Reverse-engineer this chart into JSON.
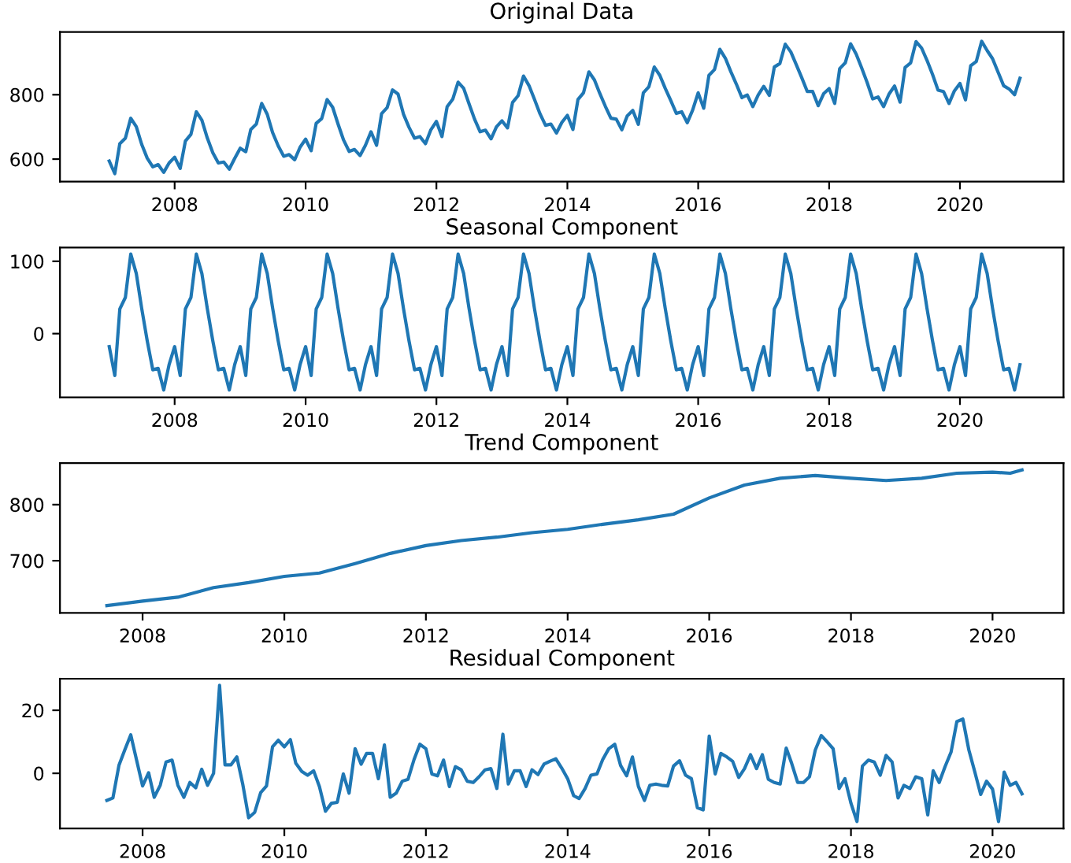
{
  "chart_data": [
    {
      "type": "line",
      "title": "Original Data",
      "color": "#1f77b4",
      "grid": false,
      "xlim": [
        "2006-04",
        "2021-08"
      ],
      "xticks": [
        {
          "value": "2008",
          "label": "2008"
        },
        {
          "value": "2010",
          "label": "2010"
        },
        {
          "value": "2012",
          "label": "2012"
        },
        {
          "value": "2014",
          "label": "2014"
        },
        {
          "value": "2016",
          "label": "2016"
        },
        {
          "value": "2018",
          "label": "2018"
        },
        {
          "value": "2020",
          "label": "2020"
        }
      ],
      "ylim": [
        530,
        995
      ],
      "yticks": [
        600,
        800
      ],
      "x": [
        "2007-01",
        "2007-02",
        "2007-03",
        "2007-04",
        "2007-05",
        "2007-06",
        "2007-07",
        "2007-08",
        "2007-09",
        "2007-10",
        "2007-11",
        "2007-12",
        "2008-01",
        "2008-02",
        "2008-03",
        "2008-04",
        "2008-05",
        "2008-06",
        "2008-07",
        "2008-08",
        "2008-09",
        "2008-10",
        "2008-11",
        "2008-12",
        "2009-01",
        "2009-02",
        "2009-03",
        "2009-04",
        "2009-05",
        "2009-06",
        "2009-07",
        "2009-08",
        "2009-09",
        "2009-10",
        "2009-11",
        "2009-12",
        "2010-01",
        "2010-02",
        "2010-03",
        "2010-04",
        "2010-05",
        "2010-06",
        "2010-07",
        "2010-08",
        "2010-09",
        "2010-10",
        "2010-11",
        "2010-12",
        "2011-01",
        "2011-02",
        "2011-03",
        "2011-04",
        "2011-05",
        "2011-06",
        "2011-07",
        "2011-08",
        "2011-09",
        "2011-10",
        "2011-11",
        "2011-12",
        "2012-01",
        "2012-02",
        "2012-03",
        "2012-04",
        "2012-05",
        "2012-06",
        "2012-07",
        "2012-08",
        "2012-09",
        "2012-10",
        "2012-11",
        "2012-12",
        "2013-01",
        "2013-02",
        "2013-03",
        "2013-04",
        "2013-05",
        "2013-06",
        "2013-07",
        "2013-08",
        "2013-09",
        "2013-10",
        "2013-11",
        "2013-12",
        "2014-01",
        "2014-02",
        "2014-03",
        "2014-04",
        "2014-05",
        "2014-06",
        "2014-07",
        "2014-08",
        "2014-09",
        "2014-10",
        "2014-11",
        "2014-12",
        "2015-01",
        "2015-02",
        "2015-03",
        "2015-04",
        "2015-05",
        "2015-06",
        "2015-07",
        "2015-08",
        "2015-09",
        "2015-10",
        "2015-11",
        "2015-12",
        "2016-01",
        "2016-02",
        "2016-03",
        "2016-04",
        "2016-05",
        "2016-06",
        "2016-07",
        "2016-08",
        "2016-09",
        "2016-10",
        "2016-11",
        "2016-12",
        "2017-01",
        "2017-02",
        "2017-03",
        "2017-04",
        "2017-05",
        "2017-06",
        "2017-07",
        "2017-08",
        "2017-09",
        "2017-10",
        "2017-11",
        "2017-12",
        "2018-01",
        "2018-02",
        "2018-03",
        "2018-04",
        "2018-05",
        "2018-06",
        "2018-07",
        "2018-08",
        "2018-09",
        "2018-10",
        "2018-11",
        "2018-12",
        "2019-01",
        "2019-02",
        "2019-03",
        "2019-04",
        "2019-05",
        "2019-06",
        "2019-07",
        "2019-08",
        "2019-09",
        "2019-10",
        "2019-11",
        "2019-12",
        "2020-01",
        "2020-02",
        "2020-03",
        "2020-04",
        "2020-05",
        "2020-06",
        "2020-07",
        "2020-08",
        "2020-09",
        "2020-10",
        "2020-11",
        "2020-12"
      ],
      "values": [
        594,
        555,
        648,
        665,
        727,
        701,
        646,
        603,
        576,
        583,
        559,
        588,
        606,
        571,
        656,
        677,
        747,
        721,
        666,
        620,
        588,
        591,
        569,
        602,
        634,
        623,
        692,
        709,
        773,
        739,
        682,
        641,
        609,
        614,
        598,
        637,
        662,
        626,
        711,
        726,
        785,
        761,
        709,
        659,
        624,
        630,
        611,
        643,
        685,
        643,
        741,
        760,
        815,
        802,
        740,
        699,
        665,
        670,
        648,
        691,
        717,
        670,
        763,
        786,
        839,
        820,
        772,
        724,
        685,
        690,
        663,
        700,
        719,
        697,
        776,
        797,
        858,
        828,
        786,
        741,
        705,
        709,
        681,
        714,
        736,
        692,
        785,
        806,
        871,
        846,
        804,
        764,
        727,
        724,
        691,
        734,
        751,
        708,
        806,
        825,
        886,
        860,
        820,
        782,
        742,
        747,
        713,
        752,
        806,
        758,
        860,
        878,
        941,
        913,
        872,
        833,
        791,
        799,
        763,
        799,
        826,
        798,
        886,
        897,
        957,
        933,
        894,
        853,
        810,
        810,
        766,
        803,
        819,
        773,
        881,
        899,
        958,
        926,
        884,
        838,
        787,
        793,
        763,
        802,
        827,
        777,
        885,
        899,
        965,
        945,
        907,
        863,
        814,
        810,
        773,
        812,
        835,
        784,
        890,
        903,
        966,
        937,
        912,
        870,
        828,
        818,
        800,
        851
      ]
    },
    {
      "type": "line",
      "title": "Seasonal Component",
      "color": "#1f77b4",
      "grid": false,
      "xlim": [
        "2006-04",
        "2021-08"
      ],
      "xticks": [
        {
          "value": "2008",
          "label": "2008"
        },
        {
          "value": "2010",
          "label": "2010"
        },
        {
          "value": "2012",
          "label": "2012"
        },
        {
          "value": "2014",
          "label": "2014"
        },
        {
          "value": "2016",
          "label": "2016"
        },
        {
          "value": "2018",
          "label": "2018"
        },
        {
          "value": "2020",
          "label": "2020"
        }
      ],
      "ylim": [
        -88,
        119
      ],
      "yticks": [
        0,
        100
      ],
      "x": [
        "2007-01",
        "2007-02",
        "2007-03",
        "2007-04",
        "2007-05",
        "2007-06",
        "2007-07",
        "2007-08",
        "2007-09",
        "2007-10",
        "2007-11",
        "2007-12",
        "2008-01",
        "2008-02",
        "2008-03",
        "2008-04",
        "2008-05",
        "2008-06",
        "2008-07",
        "2008-08",
        "2008-09",
        "2008-10",
        "2008-11",
        "2008-12",
        "2009-01",
        "2009-02",
        "2009-03",
        "2009-04",
        "2009-05",
        "2009-06",
        "2009-07",
        "2009-08",
        "2009-09",
        "2009-10",
        "2009-11",
        "2009-12",
        "2010-01",
        "2010-02",
        "2010-03",
        "2010-04",
        "2010-05",
        "2010-06",
        "2010-07",
        "2010-08",
        "2010-09",
        "2010-10",
        "2010-11",
        "2010-12",
        "2011-01",
        "2011-02",
        "2011-03",
        "2011-04",
        "2011-05",
        "2011-06",
        "2011-07",
        "2011-08",
        "2011-09",
        "2011-10",
        "2011-11",
        "2011-12",
        "2012-01",
        "2012-02",
        "2012-03",
        "2012-04",
        "2012-05",
        "2012-06",
        "2012-07",
        "2012-08",
        "2012-09",
        "2012-10",
        "2012-11",
        "2012-12",
        "2013-01",
        "2013-02",
        "2013-03",
        "2013-04",
        "2013-05",
        "2013-06",
        "2013-07",
        "2013-08",
        "2013-09",
        "2013-10",
        "2013-11",
        "2013-12",
        "2014-01",
        "2014-02",
        "2014-03",
        "2014-04",
        "2014-05",
        "2014-06",
        "2014-07",
        "2014-08",
        "2014-09",
        "2014-10",
        "2014-11",
        "2014-12",
        "2015-01",
        "2015-02",
        "2015-03",
        "2015-04",
        "2015-05",
        "2015-06",
        "2015-07",
        "2015-08",
        "2015-09",
        "2015-10",
        "2015-11",
        "2015-12",
        "2016-01",
        "2016-02",
        "2016-03",
        "2016-04",
        "2016-05",
        "2016-06",
        "2016-07",
        "2016-08",
        "2016-09",
        "2016-10",
        "2016-11",
        "2016-12",
        "2017-01",
        "2017-02",
        "2017-03",
        "2017-04",
        "2017-05",
        "2017-06",
        "2017-07",
        "2017-08",
        "2017-09",
        "2017-10",
        "2017-11",
        "2017-12",
        "2018-01",
        "2018-02",
        "2018-03",
        "2018-04",
        "2018-05",
        "2018-06",
        "2018-07",
        "2018-08",
        "2018-09",
        "2018-10",
        "2018-11",
        "2018-12",
        "2019-01",
        "2019-02",
        "2019-03",
        "2019-04",
        "2019-05",
        "2019-06",
        "2019-07",
        "2019-08",
        "2019-09",
        "2019-10",
        "2019-11",
        "2019-12",
        "2020-01",
        "2020-02",
        "2020-03",
        "2020-04",
        "2020-05",
        "2020-06",
        "2020-07",
        "2020-08",
        "2020-09",
        "2020-10",
        "2020-11",
        "2020-12"
      ],
      "values": [
        -18,
        -58,
        34,
        50,
        110,
        83,
        35,
        -10,
        -50,
        -48,
        -78,
        -43,
        -18,
        -58,
        34,
        50,
        110,
        83,
        35,
        -10,
        -50,
        -48,
        -78,
        -43,
        -18,
        -58,
        34,
        50,
        110,
        83,
        35,
        -10,
        -50,
        -48,
        -78,
        -43,
        -18,
        -58,
        34,
        50,
        110,
        83,
        35,
        -10,
        -50,
        -48,
        -78,
        -43,
        -18,
        -58,
        34,
        50,
        110,
        83,
        35,
        -10,
        -50,
        -48,
        -78,
        -43,
        -18,
        -58,
        34,
        50,
        110,
        83,
        35,
        -10,
        -50,
        -48,
        -78,
        -43,
        -18,
        -58,
        34,
        50,
        110,
        83,
        35,
        -10,
        -50,
        -48,
        -78,
        -43,
        -18,
        -58,
        34,
        50,
        110,
        83,
        35,
        -10,
        -50,
        -48,
        -78,
        -43,
        -18,
        -58,
        34,
        50,
        110,
        83,
        35,
        -10,
        -50,
        -48,
        -78,
        -43,
        -18,
        -58,
        34,
        50,
        110,
        83,
        35,
        -10,
        -50,
        -48,
        -78,
        -43,
        -18,
        -58,
        34,
        50,
        110,
        83,
        35,
        -10,
        -50,
        -48,
        -78,
        -43,
        -18,
        -58,
        34,
        50,
        110,
        83,
        35,
        -10,
        -50,
        -48,
        -78,
        -43,
        -18,
        -58,
        34,
        50,
        110,
        83,
        35,
        -10,
        -50,
        -48,
        -78,
        -43,
        -18,
        -58,
        34,
        50,
        110,
        83,
        35,
        -10,
        -50,
        -48,
        -78,
        -43
      ]
    },
    {
      "type": "line",
      "title": "Trend Component",
      "color": "#1f77b4",
      "grid": false,
      "xlim": [
        "2006-11",
        "2021-01"
      ],
      "xticks": [
        {
          "value": "2008",
          "label": "2008"
        },
        {
          "value": "2010",
          "label": "2010"
        },
        {
          "value": "2012",
          "label": "2012"
        },
        {
          "value": "2014",
          "label": "2014"
        },
        {
          "value": "2016",
          "label": "2016"
        },
        {
          "value": "2018",
          "label": "2018"
        },
        {
          "value": "2020",
          "label": "2020"
        }
      ],
      "ylim": [
        607,
        874
      ],
      "yticks": [
        700,
        800
      ],
      "x": [
        "2007-07",
        "2008-01",
        "2008-07",
        "2009-01",
        "2009-07",
        "2010-01",
        "2010-07",
        "2011-01",
        "2011-07",
        "2012-01",
        "2012-07",
        "2013-01",
        "2013-07",
        "2014-01",
        "2014-07",
        "2015-01",
        "2015-07",
        "2016-01",
        "2016-07",
        "2017-01",
        "2017-07",
        "2018-01",
        "2018-07",
        "2019-01",
        "2019-07",
        "2020-01",
        "2020-04",
        "2020-06"
      ],
      "values": [
        620,
        628,
        635,
        652,
        661,
        672,
        678,
        695,
        713,
        727,
        736,
        742,
        750,
        756,
        765,
        773,
        783,
        812,
        835,
        847,
        852,
        847,
        843,
        847,
        856,
        858,
        856,
        862
      ]
    },
    {
      "type": "line",
      "title": "Residual Component",
      "color": "#1f77b4",
      "grid": false,
      "xlim": [
        "2006-11",
        "2021-01"
      ],
      "xticks": [
        {
          "value": "2008",
          "label": "2008"
        },
        {
          "value": "2010",
          "label": "2010"
        },
        {
          "value": "2012",
          "label": "2012"
        },
        {
          "value": "2014",
          "label": "2014"
        },
        {
          "value": "2016",
          "label": "2016"
        },
        {
          "value": "2018",
          "label": "2018"
        },
        {
          "value": "2020",
          "label": "2020"
        }
      ],
      "ylim": [
        -17.5,
        30
      ],
      "yticks": [
        0,
        20
      ],
      "x": [
        "2007-07",
        "2007-08",
        "2007-09",
        "2007-10",
        "2007-11",
        "2007-12",
        "2008-01",
        "2008-02",
        "2008-03",
        "2008-04",
        "2008-05",
        "2008-06",
        "2008-07",
        "2008-08",
        "2008-09",
        "2008-10",
        "2008-11",
        "2008-12",
        "2009-01",
        "2009-02",
        "2009-03",
        "2009-04",
        "2009-05",
        "2009-06",
        "2009-07",
        "2009-08",
        "2009-09",
        "2009-10",
        "2009-11",
        "2009-12",
        "2010-01",
        "2010-02",
        "2010-03",
        "2010-04",
        "2010-05",
        "2010-06",
        "2010-07",
        "2010-08",
        "2010-09",
        "2010-10",
        "2010-11",
        "2010-12",
        "2011-01",
        "2011-02",
        "2011-03",
        "2011-04",
        "2011-05",
        "2011-06",
        "2011-07",
        "2011-08",
        "2011-09",
        "2011-10",
        "2011-11",
        "2011-12",
        "2012-01",
        "2012-02",
        "2012-03",
        "2012-04",
        "2012-05",
        "2012-06",
        "2012-07",
        "2012-08",
        "2012-09",
        "2012-10",
        "2012-11",
        "2012-12",
        "2013-01",
        "2013-02",
        "2013-03",
        "2013-04",
        "2013-05",
        "2013-06",
        "2013-07",
        "2013-08",
        "2013-09",
        "2013-10",
        "2013-11",
        "2013-12",
        "2014-01",
        "2014-02",
        "2014-03",
        "2014-04",
        "2014-05",
        "2014-06",
        "2014-07",
        "2014-08",
        "2014-09",
        "2014-10",
        "2014-11",
        "2014-12",
        "2015-01",
        "2015-02",
        "2015-03",
        "2015-04",
        "2015-05",
        "2015-06",
        "2015-07",
        "2015-08",
        "2015-09",
        "2015-10",
        "2015-11",
        "2015-12",
        "2016-01",
        "2016-02",
        "2016-03",
        "2016-04",
        "2016-05",
        "2016-06",
        "2016-07",
        "2016-08",
        "2016-09",
        "2016-10",
        "2016-11",
        "2016-12",
        "2017-01",
        "2017-02",
        "2017-03",
        "2017-04",
        "2017-05",
        "2017-06",
        "2017-07",
        "2017-08",
        "2017-09",
        "2017-10",
        "2017-11",
        "2017-12",
        "2018-01",
        "2018-02",
        "2018-03",
        "2018-04",
        "2018-05",
        "2018-06",
        "2018-07",
        "2018-08",
        "2018-09",
        "2018-10",
        "2018-11",
        "2018-12",
        "2019-01",
        "2019-02",
        "2019-03",
        "2019-04",
        "2019-05",
        "2019-06",
        "2019-07",
        "2019-08",
        "2019-09",
        "2019-10",
        "2019-11",
        "2019-12",
        "2020-01",
        "2020-02",
        "2020-03",
        "2020-04",
        "2020-05",
        "2020-06"
      ],
      "values": [
        -8.6,
        -7.8,
        2.5,
        7.4,
        12.2,
        4.2,
        -4,
        0.2,
        -7.6,
        -3.8,
        3.6,
        4.2,
        -3.8,
        -7.6,
        -2.9,
        -4.6,
        1.3,
        -3.8,
        0,
        27.9,
        2.7,
        2.7,
        5.2,
        -3.6,
        -14.1,
        -12.4,
        -6.1,
        -4,
        8.4,
        10.5,
        8.4,
        10.7,
        3.2,
        0.6,
        -0.6,
        0.8,
        -4.2,
        -12,
        -9.5,
        -9.2,
        -0.2,
        -6.3,
        7.8,
        2.9,
        6.3,
        6.3,
        -1.7,
        9,
        -7.6,
        -6.3,
        -2.5,
        -1.9,
        4.4,
        9.2,
        7.8,
        -0.2,
        -0.8,
        4.2,
        -4.2,
        2.1,
        1.1,
        -2.5,
        -2.9,
        -1.1,
        1.1,
        1.5,
        -4.8,
        12.4,
        -3.4,
        0.8,
        0.8,
        -4.2,
        1.1,
        -0.4,
        2.9,
        3.8,
        4.6,
        1.7,
        -1.7,
        -7.1,
        -8,
        -4.8,
        -0.6,
        -0.2,
        4.4,
        7.8,
        9.2,
        2.5,
        -0.8,
        5.2,
        -4.2,
        -8.6,
        -3.8,
        -3.4,
        -3.8,
        -4,
        2.3,
        4,
        -0.6,
        -1.7,
        -10.9,
        -11.6,
        11.8,
        -0.2,
        6.3,
        5.2,
        3.8,
        -1.3,
        1.5,
        5.9,
        1.5,
        5.9,
        -1.9,
        -2.9,
        -3.4,
        8,
        3.2,
        -2.9,
        -2.9,
        -1.1,
        7.4,
        12,
        9.9,
        7.8,
        -4.8,
        -1.7,
        -9.5,
        -15.3,
        2.3,
        4.2,
        3.6,
        -0.6,
        5.7,
        3.6,
        -7.8,
        -3.8,
        -4.8,
        -1.1,
        -1.7,
        -13.2,
        0.8,
        -2.9,
        2.1,
        6.7,
        16.4,
        17.2,
        7.4,
        0.6,
        -6.7,
        -2.5,
        -5,
        -15.3,
        0.4,
        -3.8,
        -2.9,
        -6.5
      ]
    }
  ]
}
